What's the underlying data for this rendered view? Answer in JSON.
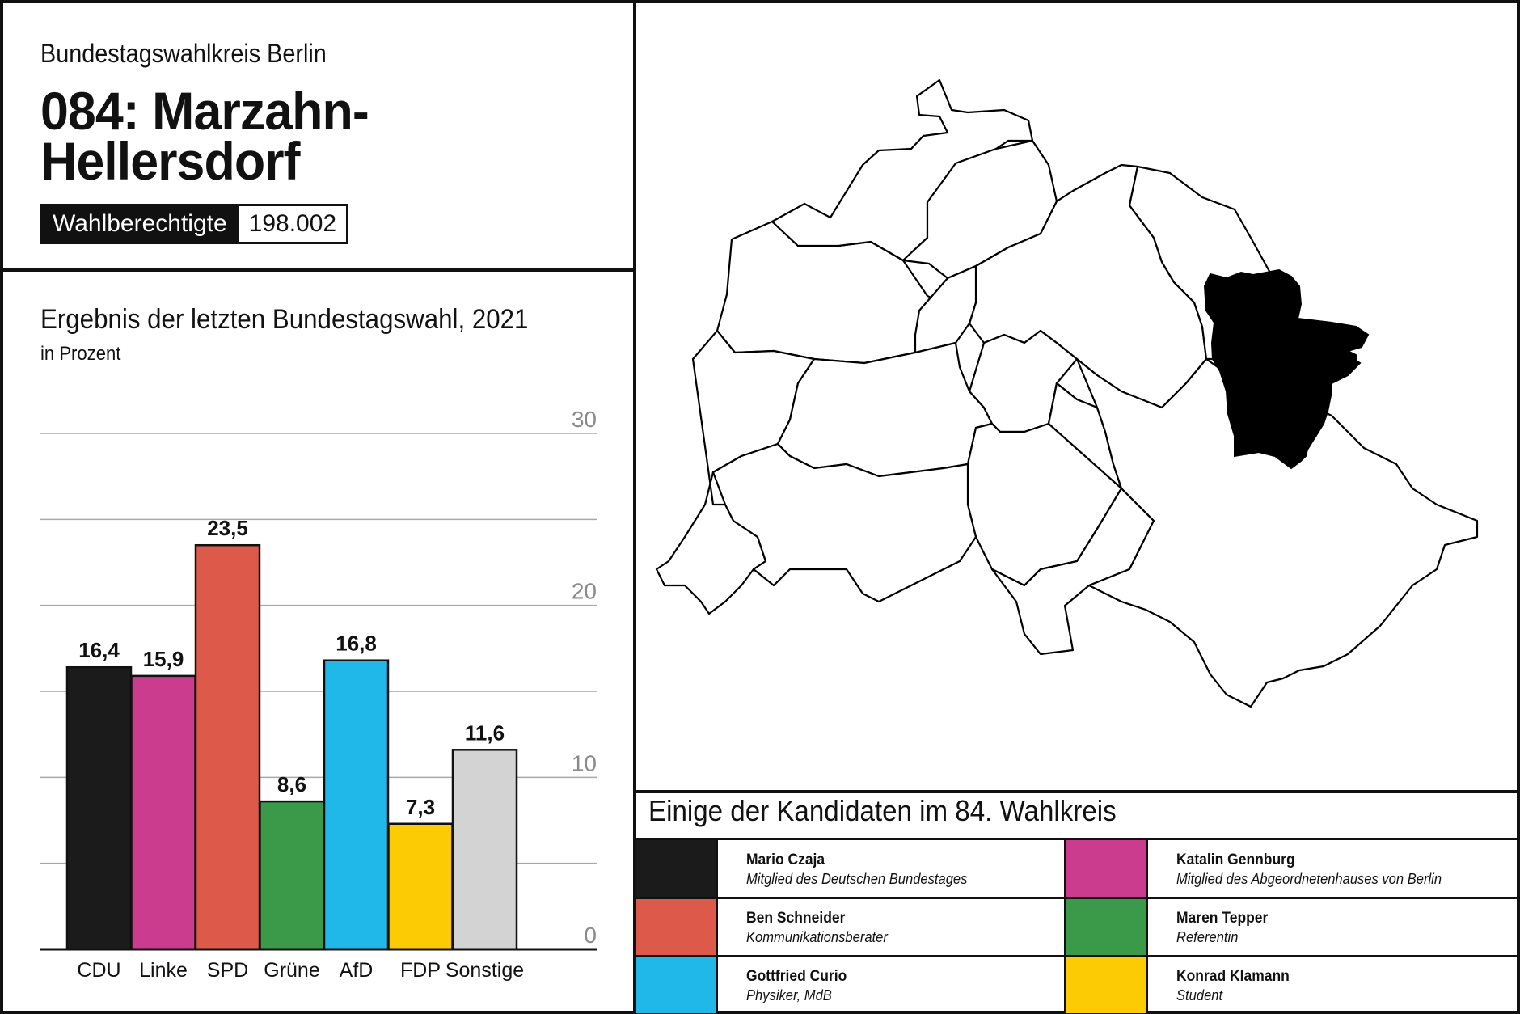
{
  "header": {
    "region_label": "Bundestagswahlkreis Berlin",
    "district_line1": "084: Marzahn-",
    "district_line2": "Hellersdorf",
    "voters_label": "Wahlberechtigte",
    "voters_value": "198.002"
  },
  "chart_data": {
    "type": "bar",
    "title": "Ergebnis der letzten Bundestagswahl, 2021",
    "subtitle": "in Prozent",
    "categories": [
      "CDU",
      "Linke",
      "SPD",
      "Grüne",
      "AfD",
      "FDP",
      "Sonstige"
    ],
    "values": [
      16.4,
      15.9,
      23.5,
      8.6,
      16.8,
      7.3,
      11.6
    ],
    "value_labels": [
      "16,4",
      "15,9",
      "23,5",
      "8,6",
      "16,8",
      "7,3",
      "11,6"
    ],
    "colors": [
      "#1b1b1b",
      "#cb3c8f",
      "#dd5a4a",
      "#3a9a4a",
      "#20b8e8",
      "#fdcb04",
      "#d3d3d3"
    ],
    "ylim": [
      0,
      30
    ],
    "yticks": [
      0,
      10,
      20,
      30
    ],
    "gridlines": [
      5,
      10,
      15,
      20,
      25,
      30
    ],
    "xlabel": "",
    "ylabel": "",
    "grid": true,
    "legend": "none"
  },
  "map": {
    "highlight_color": "#000000",
    "district_fill": "#ffffff",
    "outline_color": "#000000"
  },
  "candidates": {
    "heading": "Einige der Kandidaten im 84. Wahlkreis",
    "items": [
      {
        "name": "Mario Czaja",
        "desc": "Mitglied des Deutschen Bundestages",
        "color": "#1b1b1b"
      },
      {
        "name": "Katalin Gennburg",
        "desc": "Mitglied des Abgeordnetenhauses von Berlin",
        "color": "#cb3c8f"
      },
      {
        "name": "Ben Schneider",
        "desc": "Kommunikationsberater",
        "color": "#dd5a4a"
      },
      {
        "name": "Maren Tepper",
        "desc": "Referentin",
        "color": "#3a9a4a"
      },
      {
        "name": "Gottfried Curio",
        "desc": "Physiker, MdB",
        "color": "#20b8e8"
      },
      {
        "name": "Konrad Klamann",
        "desc": "Student",
        "color": "#fdcb04"
      }
    ]
  }
}
